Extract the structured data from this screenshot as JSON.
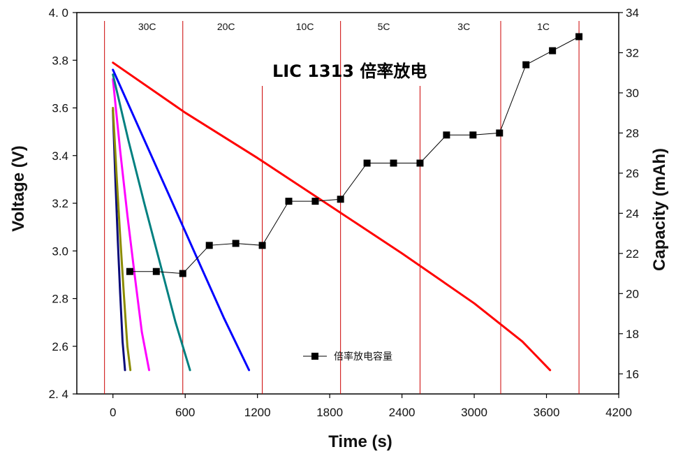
{
  "chart_data": {
    "type": "line",
    "title": "LIC 1313 倍率放电",
    "xlabel": "Time (s)",
    "ylabel": "Voltage (V)",
    "y2label": "Capacity (mAh)",
    "xlim": [
      -300,
      4200
    ],
    "ylim": [
      2.4,
      4.0
    ],
    "y2lim": [
      15,
      34
    ],
    "x_ticks": [
      "0",
      "600",
      "1200",
      "1800",
      "2400",
      "3000",
      "3600",
      "4200"
    ],
    "y_ticks": [
      "2. 4",
      "2.6",
      "2.8",
      "3.0",
      "3.2",
      "3.4",
      "3.6",
      "3.8",
      "4. 0"
    ],
    "y2_ticks": [
      "16",
      "18",
      "20",
      "22",
      "24",
      "26",
      "28",
      "30",
      "32",
      "34"
    ],
    "rate_labels": [
      "30C",
      "20C",
      "10C",
      "5C",
      "3C",
      "1C"
    ],
    "rate_dividers_x": [
      -70,
      580,
      1240,
      1890,
      2550,
      3220,
      3870
    ],
    "voltage_series": [
      {
        "color": "#0a0a7a",
        "x": [
          0,
          20,
          40,
          60,
          80,
          100
        ],
        "y": [
          3.59,
          3.3,
          3.05,
          2.82,
          2.62,
          2.5
        ]
      },
      {
        "color": "#8b8b00",
        "x": [
          0,
          30,
          60,
          90,
          120,
          145
        ],
        "y": [
          3.6,
          3.32,
          3.06,
          2.82,
          2.6,
          2.5
        ]
      },
      {
        "color": "#ff00ff",
        "x": [
          0,
          60,
          120,
          180,
          240,
          300
        ],
        "y": [
          3.72,
          3.42,
          3.15,
          2.9,
          2.66,
          2.5
        ]
      },
      {
        "color": "#008080",
        "x": [
          0,
          130,
          260,
          390,
          520,
          640
        ],
        "y": [
          3.74,
          3.46,
          3.2,
          2.95,
          2.7,
          2.5
        ]
      },
      {
        "color": "#0000ff",
        "x": [
          0,
          230,
          460,
          690,
          920,
          1130
        ],
        "y": [
          3.76,
          3.5,
          3.24,
          2.98,
          2.72,
          2.5
        ]
      },
      {
        "color": "#ff0000",
        "x": [
          0,
          600,
          1200,
          1800,
          2400,
          3000,
          3400,
          3630
        ],
        "y": [
          3.79,
          3.58,
          3.39,
          3.19,
          2.99,
          2.78,
          2.62,
          2.5
        ]
      }
    ],
    "capacity_series": {
      "name": "倍率放电容量",
      "color": "#000000",
      "x": [
        140,
        360,
        580,
        800,
        1020,
        1240,
        1460,
        1680,
        1890,
        2110,
        2330,
        2550,
        2770,
        2990,
        3210,
        3430,
        3650,
        3870
      ],
      "y": [
        21.1,
        21.1,
        21.0,
        22.4,
        22.5,
        22.4,
        24.6,
        24.6,
        24.7,
        26.5,
        26.5,
        26.5,
        27.9,
        27.9,
        28.0,
        31.4,
        32.1,
        32.8
      ]
    }
  }
}
